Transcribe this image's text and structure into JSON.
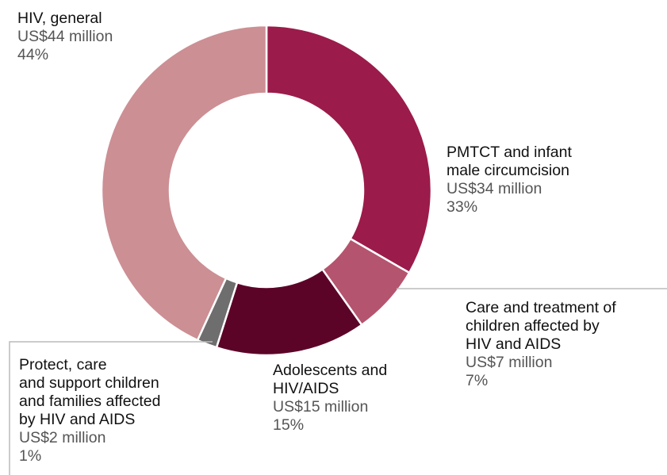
{
  "chart_data": {
    "type": "pie",
    "variant": "donut",
    "categories": [
      "PMTCT and infant male circumcision",
      "Care and treatment of children affected by HIV and AIDS",
      "Adolescents and HIV/AIDS",
      "Protect, care and support children and families affected by HIV and AIDS",
      "HIV, general"
    ],
    "values": [
      34,
      7,
      15,
      2,
      44
    ],
    "value_unit": "US$ million",
    "slices": [
      {
        "key": "pmtct",
        "name": "PMTCT and infant male circumcision",
        "name_lines": [
          "PMTCT and infant",
          "male circumcision"
        ],
        "amount": "US$34 million",
        "percent": "33%",
        "value": 34,
        "color": "#9b1b4a"
      },
      {
        "key": "care",
        "name": "Care and treatment of children affected by HIV and AIDS",
        "name_lines": [
          "Care and treatment of",
          "children affected by",
          "HIV and AIDS"
        ],
        "amount": "US$7 million",
        "percent": "7%",
        "value": 7,
        "color": "#b5546e"
      },
      {
        "key": "adolescent",
        "name": "Adolescents and HIV/AIDS",
        "name_lines": [
          "Adolescents and",
          "HIV/AIDS"
        ],
        "amount": "US$15 million",
        "percent": "15%",
        "value": 15,
        "color": "#5c0428"
      },
      {
        "key": "protect",
        "name": "Protect, care and support children and families affected by HIV and AIDS",
        "name_lines": [
          "Protect, care",
          "and support children",
          "and families affected",
          "by HIV and AIDS"
        ],
        "amount": "US$2 million",
        "percent": "1%",
        "value": 2,
        "color": "#6e6e6e"
      },
      {
        "key": "general",
        "name": "HIV, general",
        "name_lines": [
          "HIV, general"
        ],
        "amount": "US$44 million",
        "percent": "44%",
        "value": 44,
        "color": "#cc8f94"
      }
    ]
  }
}
